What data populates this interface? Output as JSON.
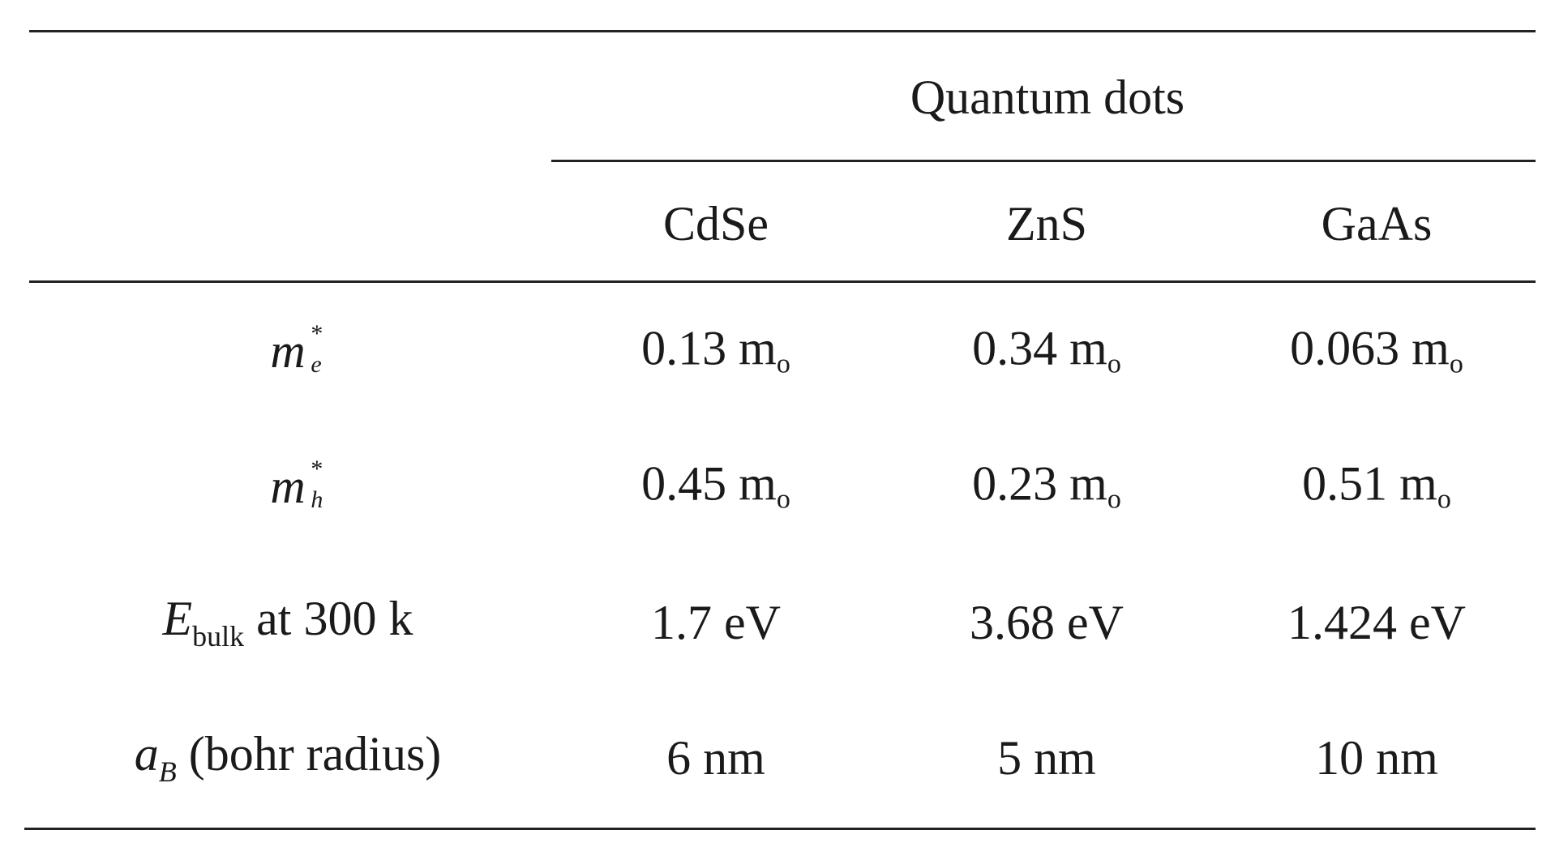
{
  "table": {
    "group_header": "Quantum dots",
    "columns": [
      "CdSe",
      "ZnS",
      "GaAs"
    ],
    "rows": [
      {
        "label": {
          "base": "m",
          "sup": "*",
          "sub": "e"
        },
        "values": [
          "0.13",
          "0.34",
          "0.063"
        ],
        "unit": {
          "base": "m",
          "sub": "o"
        }
      },
      {
        "label": {
          "base": "m",
          "sup": "*",
          "sub": "h"
        },
        "values": [
          "0.45",
          "0.23",
          "0.51"
        ],
        "unit": {
          "base": "m",
          "sub": "o"
        }
      },
      {
        "label": {
          "base": "E",
          "sub": "bulk",
          "suffix": " at 300 k"
        },
        "values": [
          "1.7 eV",
          "3.68 eV",
          "1.424 eV"
        ]
      },
      {
        "label": {
          "base": "a",
          "sub": "B",
          "suffix": " (bohr radius)"
        },
        "values": [
          "6 nm",
          "5 nm",
          "10 nm"
        ]
      }
    ]
  }
}
